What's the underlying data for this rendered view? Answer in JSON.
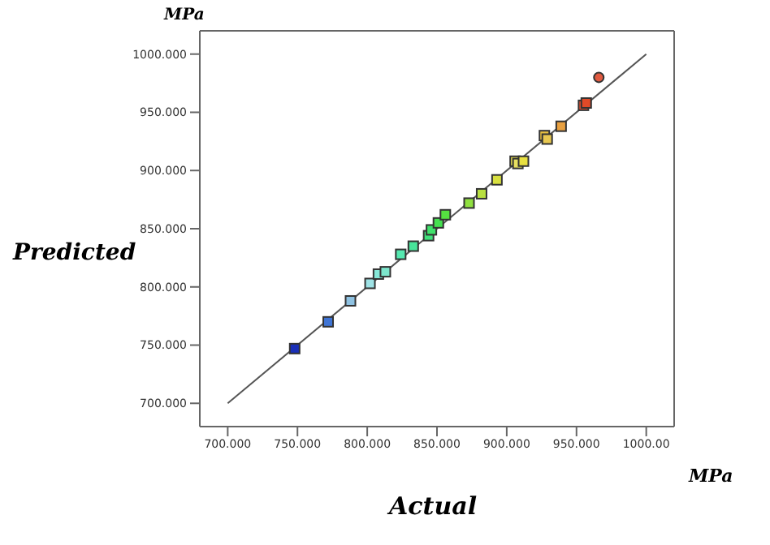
{
  "chart_data": {
    "type": "scatter",
    "xlabel": "Actual",
    "ylabel": "Predicted",
    "annotations": [
      "MPa",
      "MPa"
    ],
    "xlim": [
      680,
      1020
    ],
    "ylim": [
      680,
      1020
    ],
    "xticks": [
      {
        "value": 700,
        "label": "700.000"
      },
      {
        "value": 750,
        "label": "750.000"
      },
      {
        "value": 800,
        "label": "800.000"
      },
      {
        "value": 850,
        "label": "850.000"
      },
      {
        "value": 900,
        "label": "900.000"
      },
      {
        "value": 950,
        "label": "950.000"
      },
      {
        "value": 1000,
        "label": "1000.00"
      }
    ],
    "yticks": [
      {
        "value": 700,
        "label": "700.000"
      },
      {
        "value": 750,
        "label": "750.000"
      },
      {
        "value": 800,
        "label": "800.000"
      },
      {
        "value": 850,
        "label": "850.000"
      },
      {
        "value": 900,
        "label": "900.000"
      },
      {
        "value": 950,
        "label": "950.000"
      },
      {
        "value": 1000,
        "label": "1000.000"
      }
    ],
    "series": [
      {
        "marker": "square",
        "x": [
          748,
          772,
          788,
          802,
          808,
          813,
          824,
          833,
          844,
          846,
          851,
          856,
          873,
          882,
          893,
          906,
          908,
          912,
          927,
          929,
          939,
          955,
          957
        ],
        "values": [
          747,
          770,
          788,
          803,
          811,
          813,
          828,
          835,
          844,
          849,
          855,
          862,
          872,
          880,
          892,
          908,
          906,
          908,
          930,
          927,
          938,
          956,
          958
        ],
        "colors": [
          "#1a2fb8",
          "#3f74d4",
          "#8fc2e2",
          "#9fe3e6",
          "#86e8d8",
          "#7de6cc",
          "#55e8b0",
          "#48e49a",
          "#3fe27a",
          "#3fe06a",
          "#45e050",
          "#55e040",
          "#90e040",
          "#b8e040",
          "#d8e040",
          "#e8e050",
          "#e8e060",
          "#e8e040",
          "#e8c040",
          "#e8c850",
          "#e8a040",
          "#e85030",
          "#e04a28"
        ]
      },
      {
        "marker": "circle",
        "x": [
          966
        ],
        "values": [
          980
        ],
        "colors": [
          "#e05a40"
        ]
      },
      {
        "type": "line",
        "color": "#555555",
        "x": [
          700,
          1000
        ],
        "values": [
          700,
          1000
        ]
      }
    ]
  }
}
